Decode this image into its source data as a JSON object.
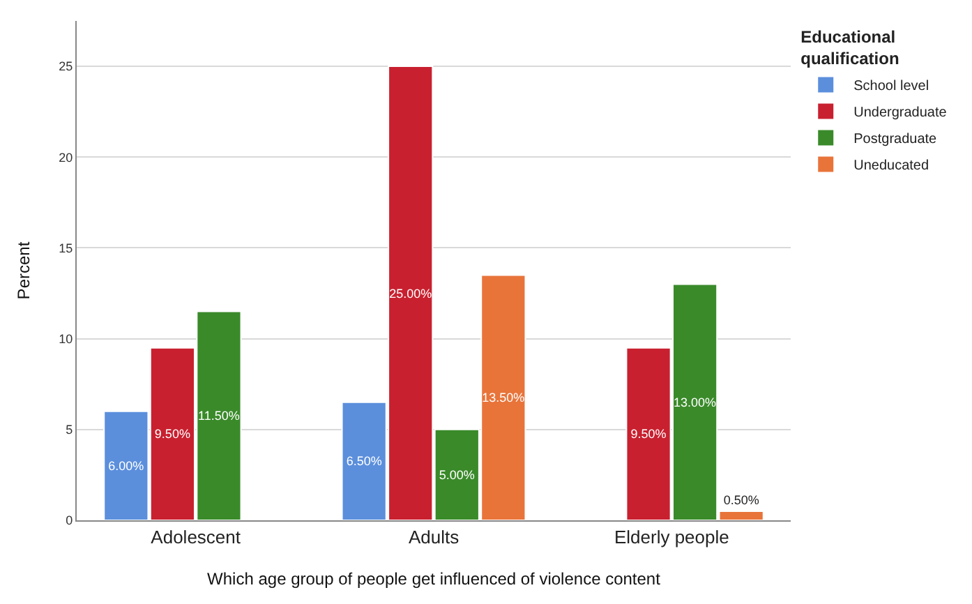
{
  "chart_data": {
    "type": "bar",
    "xlabel": "Which age group of people get influenced of violence content",
    "ylabel": "Percent",
    "legend_title": "Educational qualification",
    "categories": [
      "Adolescent",
      "Adults",
      "Elderly people"
    ],
    "series": [
      {
        "name": "School level",
        "color": "#5b8fdc",
        "values": [
          6.0,
          6.5,
          null
        ],
        "value_labels": [
          "6.00%",
          "6.50%",
          null
        ]
      },
      {
        "name": "Undergraduate",
        "color": "#c8202f",
        "values": [
          9.5,
          25.0,
          9.5
        ],
        "value_labels": [
          "9.50%",
          "25.00%",
          "9.50%"
        ]
      },
      {
        "name": "Postgraduate",
        "color": "#3a8a2a",
        "values": [
          11.5,
          5.0,
          13.0
        ],
        "value_labels": [
          "11.50%",
          "5.00%",
          "13.00%"
        ]
      },
      {
        "name": "Uneducated",
        "color": "#e8743a",
        "values": [
          null,
          13.5,
          0.5
        ],
        "value_labels": [
          null,
          "13.50%",
          "0.50%"
        ]
      }
    ],
    "ylim": [
      0,
      27.5
    ],
    "yticks": [
      0,
      5,
      10,
      15,
      20,
      25
    ],
    "grid": "y",
    "legend": "top right"
  }
}
